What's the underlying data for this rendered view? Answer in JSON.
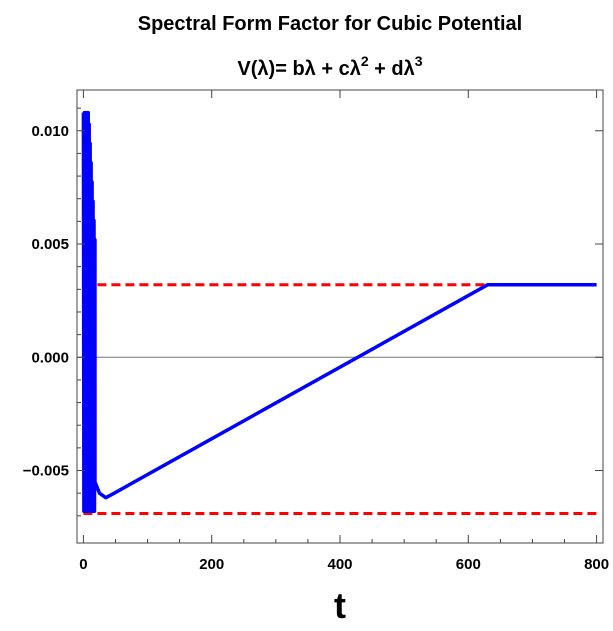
{
  "chart_data": {
    "type": "line",
    "title": "Spectral Form Factor for Cubic Potential",
    "subtitle_main": "V(λ)= bλ + cλ",
    "subtitle_exp1": "2",
    "subtitle_mid": " + dλ",
    "subtitle_exp2": "3",
    "xlabel": "t",
    "ylabel": "",
    "xlim": [
      -10,
      810
    ],
    "ylim": [
      -0.0082,
      0.0118
    ],
    "x_ticks": [
      0,
      200,
      400,
      600,
      800
    ],
    "x_tick_labels": [
      "0",
      "200",
      "400",
      "600",
      "800"
    ],
    "y_ticks": [
      -0.005,
      0.0,
      0.005,
      0.01
    ],
    "y_tick_labels": [
      "−0.005",
      "0.000",
      "0.005",
      "0.010"
    ],
    "zero_line": 0.0,
    "series": [
      {
        "color": "#0000ff",
        "style": "solid",
        "oscillation": {
          "x_start": 0,
          "x_end": 18,
          "y_max": 0.0108,
          "y_min": -0.0068
        },
        "decay": [
          [
            18,
            -0.0055
          ],
          [
            25,
            -0.006
          ],
          [
            35,
            -0.0062
          ],
          [
            48,
            -0.006
          ]
        ],
        "ramp": [
          [
            48,
            -0.006
          ],
          [
            630,
            0.0032
          ]
        ],
        "plateau": [
          [
            630,
            0.0032
          ],
          [
            800,
            0.0032
          ]
        ]
      },
      {
        "color": "#ff0000",
        "style": "dashed",
        "x": [
          0,
          800
        ],
        "y": [
          0.0032,
          0.0032
        ]
      },
      {
        "color": "#ff0000",
        "style": "dashed",
        "x": [
          0,
          800
        ],
        "y": [
          -0.0069,
          -0.0069
        ]
      }
    ]
  }
}
